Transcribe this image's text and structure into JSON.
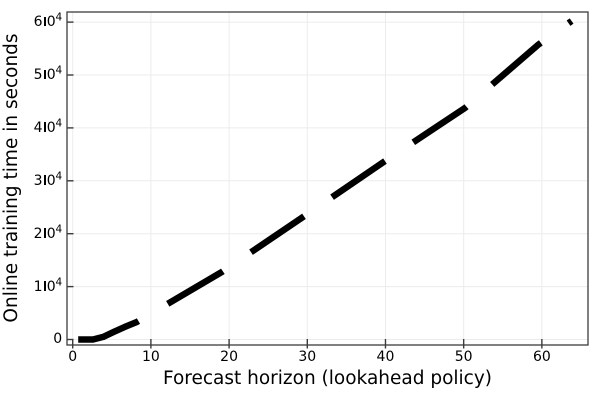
{
  "colors": {
    "background": "#ffffff",
    "line": "#000000",
    "frame": "#3c3c3c",
    "grid": "#ececec",
    "text": "#000000"
  },
  "chart_data": {
    "type": "line",
    "title": "",
    "xlabel": "Forecast horizon (lookahead policy)",
    "ylabel": "Online training time in seconds",
    "grid": true,
    "legend": false,
    "xlim": [
      -0.73,
      65.9
    ],
    "ylim": [
      -1040,
      61910
    ],
    "x_ticks": [
      {
        "v": 0,
        "label": "0"
      },
      {
        "v": 10,
        "label": "10"
      },
      {
        "v": 20,
        "label": "20"
      },
      {
        "v": 30,
        "label": "30"
      },
      {
        "v": 40,
        "label": "40"
      },
      {
        "v": 50,
        "label": "50"
      },
      {
        "v": 60,
        "label": "60"
      }
    ],
    "y_ticks": [
      {
        "v": 0,
        "label": "0"
      },
      {
        "v": 10000,
        "coef": "1",
        "base": "10",
        "exp": "4"
      },
      {
        "v": 20000,
        "coef": "2",
        "base": "10",
        "exp": "4"
      },
      {
        "v": 30000,
        "coef": "3",
        "base": "10",
        "exp": "4"
      },
      {
        "v": 40000,
        "coef": "4",
        "base": "10",
        "exp": "4"
      },
      {
        "v": 50000,
        "coef": "5",
        "base": "10",
        "exp": "4"
      },
      {
        "v": 60000,
        "coef": "6",
        "base": "10",
        "exp": "4"
      }
    ],
    "series": [
      {
        "name": "online-training-time",
        "color": "#000000",
        "line_style": "dashed",
        "line_width": 6.5,
        "x": [
          0.7,
          2.6,
          3.9,
          5.2,
          6.7,
          8.2,
          19.1,
          29.3,
          39.6,
          50.2,
          59.5,
          63.8
        ],
        "y": [
          0,
          0,
          500,
          1400,
          2400,
          3300,
          12800,
          23000,
          33400,
          43800,
          55700,
          60200
        ]
      }
    ]
  }
}
